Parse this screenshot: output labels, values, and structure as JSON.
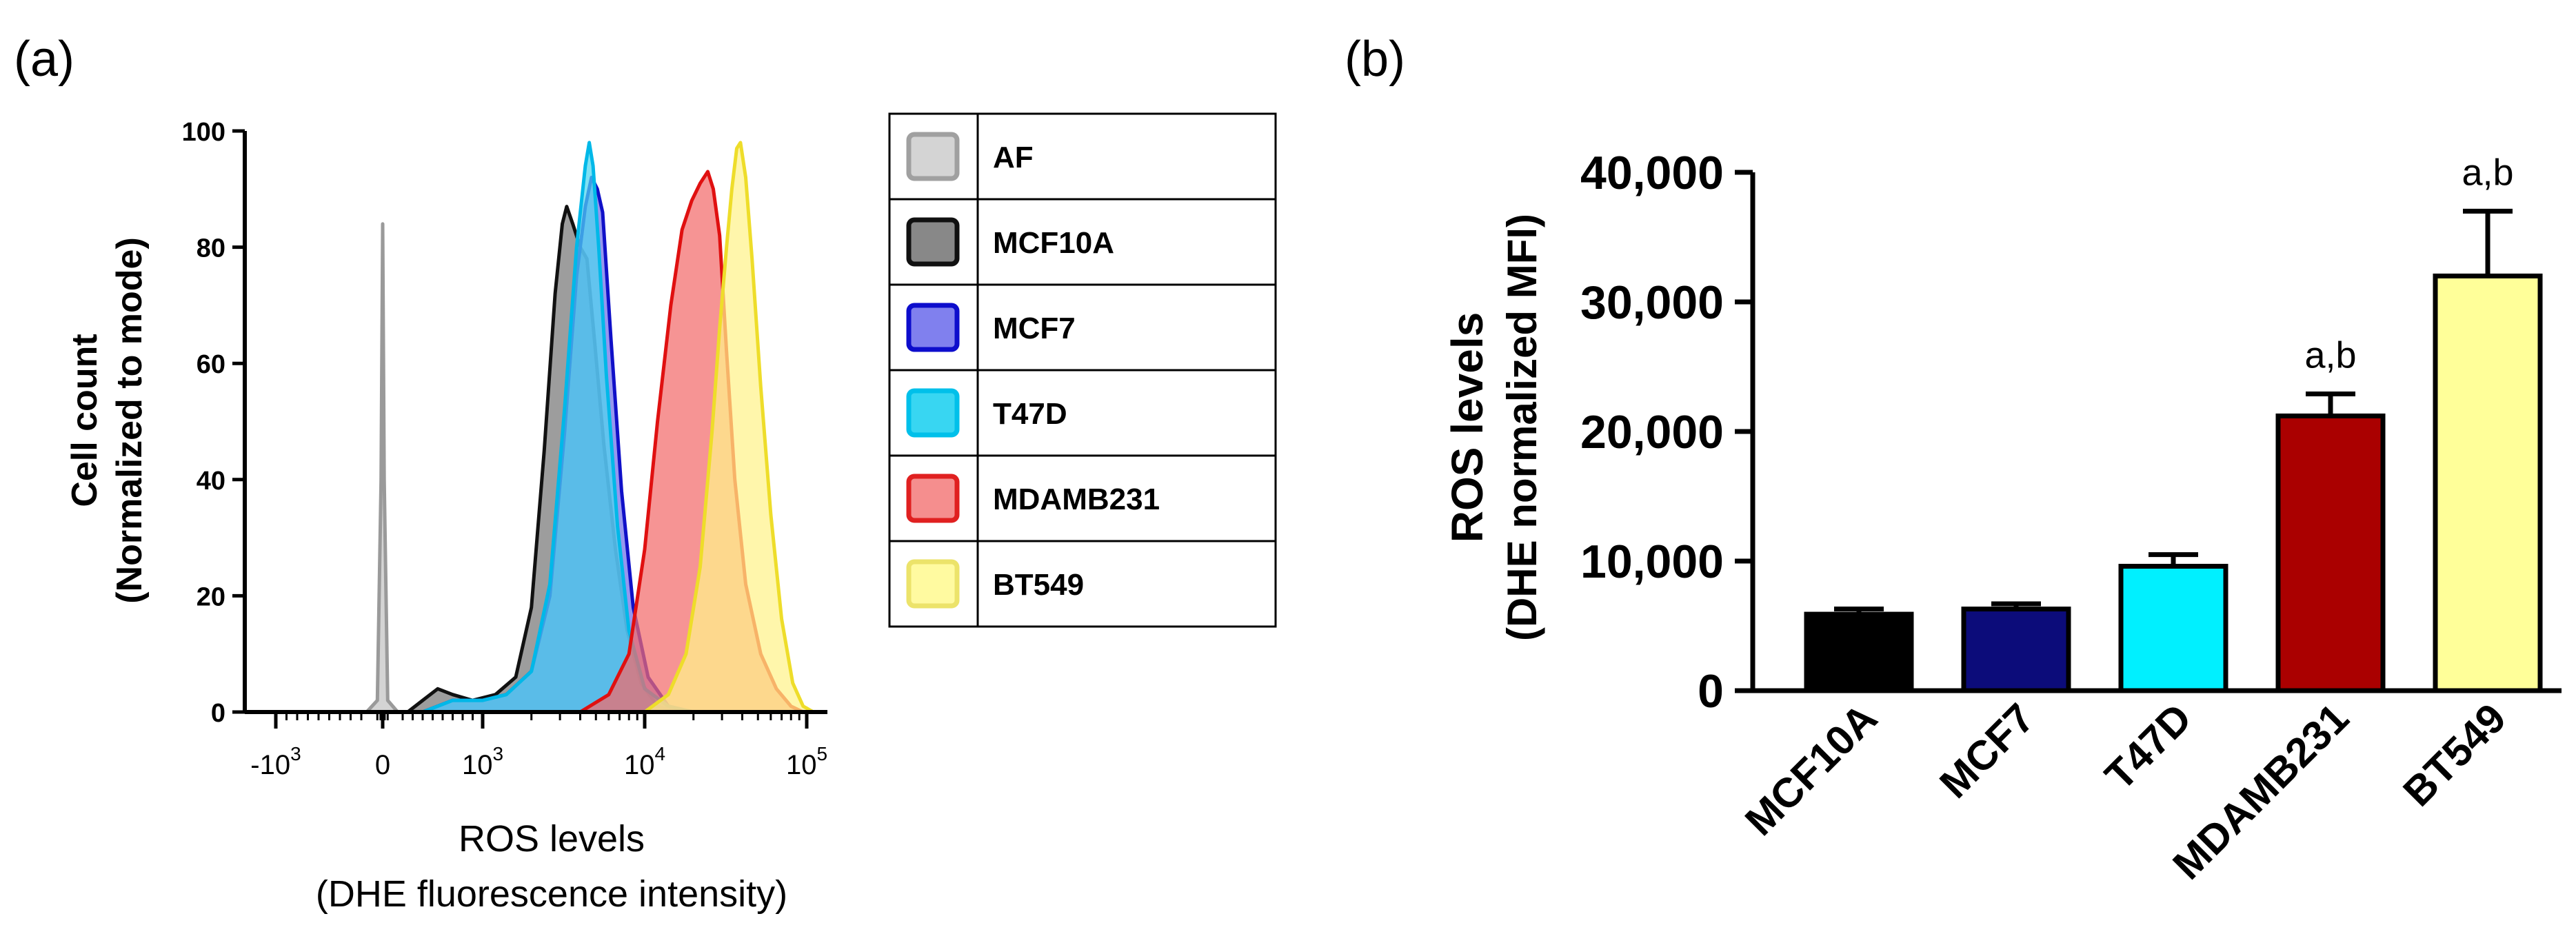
{
  "chart_data": [
    {
      "panel_label": "(a)",
      "type": "area",
      "subtype": "flow-cytometry histogram overlay",
      "title": "",
      "ylabel_line1": "Cell count",
      "ylabel_line2": "(Normalized to mode)",
      "xlabel_line1": "ROS levels",
      "xlabel_line2": "(DHE fluorescence  intensity)",
      "x_scale": "biexponential",
      "xlim": [
        -2000,
        150000
      ],
      "ylim": [
        0,
        100
      ],
      "y_ticks": [
        0,
        20,
        40,
        60,
        80,
        100
      ],
      "x_ticks": [
        {
          "value": -1000,
          "base": "-10",
          "exp": "3"
        },
        {
          "value": 0,
          "base": "0",
          "exp": ""
        },
        {
          "value": 1000,
          "base": "10",
          "exp": "3"
        },
        {
          "value": 10000,
          "base": "10",
          "exp": "4"
        },
        {
          "value": 100000,
          "base": "10",
          "exp": "5"
        }
      ],
      "series": [
        {
          "name": "AF",
          "fill": "#c4c4c4",
          "stroke": "#9a9a9a",
          "points": [
            [
              -150,
              0
            ],
            [
              -50,
              2
            ],
            [
              -15,
              40
            ],
            [
              0,
              84
            ],
            [
              15,
              40
            ],
            [
              50,
              2
            ],
            [
              150,
              0
            ]
          ]
        },
        {
          "name": "MCF10A",
          "fill": "#777777",
          "stroke": "#111111",
          "points": [
            [
              250,
              0
            ],
            [
              400,
              2
            ],
            [
              550,
              4
            ],
            [
              700,
              3
            ],
            [
              900,
              2
            ],
            [
              1200,
              3
            ],
            [
              1600,
              6
            ],
            [
              2000,
              18
            ],
            [
              2400,
              45
            ],
            [
              2800,
              72
            ],
            [
              3100,
              84
            ],
            [
              3300,
              87
            ],
            [
              3600,
              84
            ],
            [
              4000,
              80
            ],
            [
              4400,
              78
            ],
            [
              4900,
              64
            ],
            [
              5600,
              46
            ],
            [
              6600,
              28
            ],
            [
              7800,
              14
            ],
            [
              9500,
              5
            ],
            [
              12000,
              1
            ],
            [
              16000,
              0
            ]
          ]
        },
        {
          "name": "MCF7",
          "fill": "#6d6fe8",
          "stroke": "#1010c8",
          "points": [
            [
              400,
              0
            ],
            [
              700,
              2
            ],
            [
              1000,
              2
            ],
            [
              1400,
              3
            ],
            [
              2000,
              7
            ],
            [
              2600,
              20
            ],
            [
              3200,
              48
            ],
            [
              3800,
              75
            ],
            [
              4300,
              87
            ],
            [
              4700,
              92
            ],
            [
              5100,
              90
            ],
            [
              5500,
              86
            ],
            [
              6200,
              64
            ],
            [
              7200,
              38
            ],
            [
              8500,
              18
            ],
            [
              10500,
              6
            ],
            [
              14000,
              1
            ],
            [
              20000,
              0
            ]
          ]
        },
        {
          "name": "T47D",
          "fill": "#4dd6f0",
          "stroke": "#00b8e8",
          "points": [
            [
              400,
              0
            ],
            [
              700,
              2
            ],
            [
              1000,
              2
            ],
            [
              1400,
              3
            ],
            [
              2000,
              7
            ],
            [
              2600,
              22
            ],
            [
              3200,
              52
            ],
            [
              3800,
              80
            ],
            [
              4300,
              94
            ],
            [
              4550,
              98
            ],
            [
              4800,
              94
            ],
            [
              5200,
              80
            ],
            [
              5800,
              58
            ],
            [
              6800,
              32
            ],
            [
              8000,
              14
            ],
            [
              10000,
              4
            ],
            [
              14000,
              1
            ],
            [
              20000,
              0
            ]
          ]
        },
        {
          "name": "MDAMB231",
          "fill": "#f26b6b",
          "stroke": "#e01010",
          "points": [
            [
              4000,
              0
            ],
            [
              6000,
              3
            ],
            [
              8000,
              10
            ],
            [
              10000,
              28
            ],
            [
              12000,
              50
            ],
            [
              14500,
              70
            ],
            [
              17000,
              83
            ],
            [
              19500,
              88
            ],
            [
              22000,
              91
            ],
            [
              24500,
              93
            ],
            [
              26500,
              90
            ],
            [
              29000,
              82
            ],
            [
              32000,
              62
            ],
            [
              36000,
              40
            ],
            [
              42000,
              22
            ],
            [
              52000,
              10
            ],
            [
              65000,
              4
            ],
            [
              80000,
              1
            ],
            [
              95000,
              0
            ]
          ]
        },
        {
          "name": "BT549",
          "fill": "#fff28a",
          "stroke": "#eedd2a",
          "points": [
            [
              10000,
              0
            ],
            [
              14000,
              3
            ],
            [
              18000,
              10
            ],
            [
              22000,
              25
            ],
            [
              26000,
              48
            ],
            [
              29000,
              66
            ],
            [
              32000,
              80
            ],
            [
              34500,
              90
            ],
            [
              37000,
              97
            ],
            [
              39000,
              98
            ],
            [
              42000,
              92
            ],
            [
              46000,
              78
            ],
            [
              52000,
              56
            ],
            [
              60000,
              34
            ],
            [
              70000,
              16
            ],
            [
              82000,
              5
            ],
            [
              95000,
              1
            ],
            [
              110000,
              0
            ]
          ]
        }
      ],
      "legend": [
        {
          "label": "AF",
          "fill": "#d4d4d4",
          "stroke": "#a0a0a0"
        },
        {
          "label": "MCF10A",
          "fill": "#888888",
          "stroke": "#111111"
        },
        {
          "label": "MCF7",
          "fill": "#8080ee",
          "stroke": "#0d0dcc"
        },
        {
          "label": "T47D",
          "fill": "#38d6f2",
          "stroke": "#00c0ea"
        },
        {
          "label": "MDAMB231",
          "fill": "#f58e8e",
          "stroke": "#e02020"
        },
        {
          "label": "BT549",
          "fill": "#fffaa0",
          "stroke": "#ece36a"
        }
      ]
    },
    {
      "panel_label": "(b)",
      "type": "bar",
      "title": "",
      "ylabel_line1": "ROS levels",
      "ylabel_line2": "(DHE normalized MFI)",
      "xlabel": "",
      "ylim": [
        0,
        40000
      ],
      "y_ticks": [
        0,
        10000,
        20000,
        30000,
        40000
      ],
      "y_tick_labels": [
        "0",
        "10,000",
        "20,000",
        "30,000",
        "40,000"
      ],
      "categories": [
        "MCF10A",
        "MCF7",
        "T47D",
        "MDAMB231",
        "BT549"
      ],
      "values": [
        5900,
        6300,
        9600,
        21200,
        32000
      ],
      "errors": [
        400,
        400,
        900,
        1700,
        5000
      ],
      "colors": [
        "#000000",
        "#0c0c7a",
        "#00f0ff",
        "#aa0000",
        "#ffff99"
      ],
      "annotations": [
        "",
        "",
        "",
        "a,b",
        "a,b"
      ]
    }
  ]
}
